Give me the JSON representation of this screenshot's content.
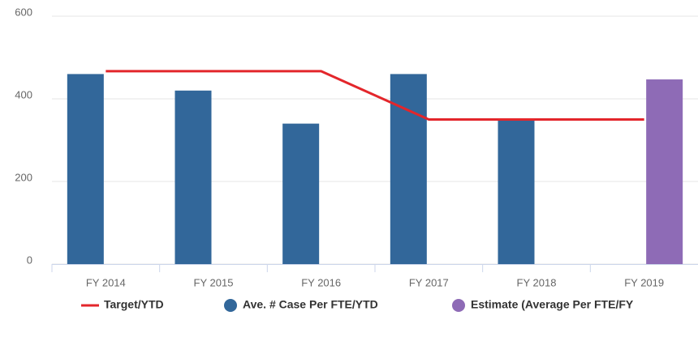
{
  "chart_data": {
    "type": "bar",
    "categories": [
      "FY 2014",
      "FY 2015",
      "FY 2016",
      "FY 2017",
      "FY 2018",
      "FY 2019"
    ],
    "series": [
      {
        "name": "Target/YTD",
        "type": "line",
        "color": "#e3262b",
        "values": [
          467,
          467,
          467,
          350,
          350,
          350
        ]
      },
      {
        "name": "Ave. # Case Per FTE/YTD",
        "type": "bar",
        "color": "#32679a",
        "values": [
          460,
          420,
          340,
          460,
          350,
          null
        ]
      },
      {
        "name": "Estimate (Average Per FTE/FY",
        "type": "bar",
        "color": "#8e6bb6",
        "values": [
          null,
          null,
          null,
          null,
          null,
          447
        ]
      }
    ],
    "ylim": [
      0,
      600
    ],
    "yticks": [
      0,
      200,
      400,
      600
    ],
    "grid": true
  }
}
